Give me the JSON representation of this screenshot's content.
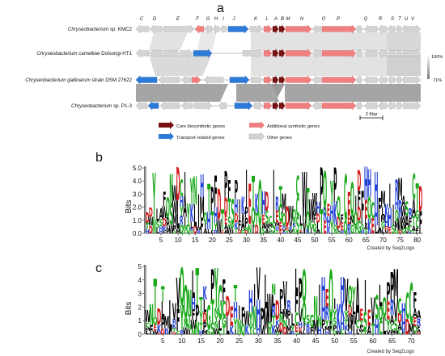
{
  "panel_a": {
    "letter": "a",
    "gene_letters": [
      "C",
      "D",
      "E",
      "F",
      "G",
      "H",
      "I",
      "J",
      "K",
      "L",
      "A",
      "B",
      "M",
      "N",
      "O",
      "P",
      "Q",
      "R",
      "S",
      "T",
      "U",
      "V"
    ],
    "strains": [
      {
        "italic": "Chryseobacterium",
        "rest": " sp. KMC2"
      },
      {
        "italic": "Chryseobacterium camelliae",
        "rest": " Dolsongi-HT1"
      },
      {
        "italic": "Chryseobacterium gallinarum",
        "rest": " strain DSM 27622"
      },
      {
        "italic": "Chryseobacterium",
        "rest": " sp. P1-3"
      }
    ],
    "identity_scale": {
      "top": "100%",
      "bottom": "71%"
    },
    "scale_bar": "2 Kbp",
    "legend": [
      {
        "label": "Core biosynthetic genes",
        "color": "#7a1010"
      },
      {
        "label": "Additional synthetic genes",
        "color": "#f08080"
      },
      {
        "label": "Transport-related genes",
        "color": "#2e7ad8"
      },
      {
        "label": "Other genes",
        "color": "#d4d4d4"
      }
    ]
  },
  "panel_b": {
    "letter": "b",
    "ylabel": "Bits",
    "yticks": [
      "0.0",
      "1.0",
      "2.0",
      "3.0",
      "4.0",
      "5.0"
    ],
    "xticks": [
      "5",
      "10",
      "15",
      "20",
      "25",
      "30",
      "35",
      "40",
      "45",
      "50",
      "55",
      "60",
      "65",
      "70",
      "75",
      "80"
    ],
    "credit": "Created by Seq2Logo"
  },
  "panel_c": {
    "letter": "c",
    "ylabel": "Bits",
    "yticks": [
      "0",
      "1",
      "2",
      "3",
      "4",
      "5"
    ],
    "xticks": [
      "5",
      "10",
      "15",
      "20",
      "25",
      "30",
      "35",
      "40",
      "45",
      "50",
      "55",
      "60",
      "65",
      "70"
    ],
    "credit": "Created by Seq2Logo"
  }
}
